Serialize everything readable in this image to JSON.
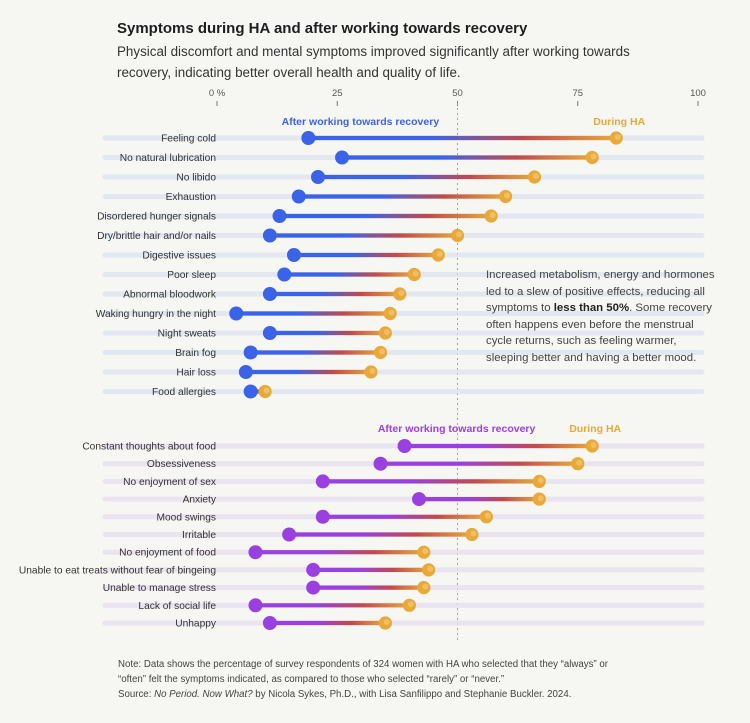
{
  "header": {
    "title": "Symptoms during HA and after working towards recovery",
    "subtitle": "Physical discomfort and mental symptoms improved significantly after working towards recovery, indicating better overall health and quality of life."
  },
  "annotation": {
    "text_before": "Increased metabolism, energy and hormones led to a slew of positive effects, reducing all symptoms to ",
    "bold": "less than 50%",
    "text_after": ". Some recovery often happens even before the menstrual cycle returns, such as feeling warmer, sleeping better and having a better mood."
  },
  "footer": {
    "note": "Note: Data shows the percentage of survey respondents of 324 women with HA who selected that they “always” or “often” felt the symptoms indicated, as compared to those who selected “rarely” or “never.”",
    "source_label": "Source: ",
    "source_book": "No Period. Now What?",
    "source_rest": " by Nicola Sykes, Ph.D., with Lisa Sanfilippo and Stephanie Buckler. 2024."
  },
  "colors": {
    "physical": "#3b63e8",
    "mental": "#9a3fe0",
    "during": "#e8a83a",
    "connector_mid": "#c24a4a",
    "reference_line": "#9a9a9a"
  },
  "chart_data": [
    {
      "type": "dumbbell",
      "group": "physical",
      "x_axis": {
        "ticks": [
          0,
          25,
          50,
          75,
          100
        ],
        "tick_labels": [
          "0 %",
          "25",
          "50",
          "75",
          "100"
        ],
        "xlim": [
          0,
          100
        ],
        "reference_line": 50
      },
      "legend": {
        "after": "After working towards recovery",
        "during": "During HA"
      },
      "categories": [
        "Feeling cold",
        "No natural lubrication",
        "No libido",
        "Exhaustion",
        "Disordered hunger signals",
        "Dry/brittle hair and/or nails",
        "Digestive issues",
        "Poor sleep",
        "Abnormal bloodwork",
        "Waking hungry in the night",
        "Night sweats",
        "Brain fog",
        "Hair loss",
        "Food allergies"
      ],
      "series": [
        {
          "name": "After working towards recovery",
          "values": [
            19,
            26,
            21,
            17,
            13,
            11,
            16,
            14,
            11,
            4,
            11,
            7,
            6,
            7
          ]
        },
        {
          "name": "During HA",
          "values": [
            83,
            78,
            66,
            60,
            57,
            50,
            46,
            41,
            38,
            36,
            35,
            34,
            32,
            10
          ]
        }
      ]
    },
    {
      "type": "dumbbell",
      "group": "mental",
      "x_axis": {
        "xlim": [
          0,
          100
        ],
        "reference_line": 50
      },
      "legend": {
        "after": "After working towards recovery",
        "during": "During HA"
      },
      "categories": [
        "Constant thoughts about food",
        "Obsessiveness",
        "No enjoyment of sex",
        "Anxiety",
        "Mood swings",
        "Irritable",
        "No enjoyment of food",
        "Unable to eat treats without fear of bingeing",
        "Unable to manage stress",
        "Lack of social life",
        "Unhappy"
      ],
      "series": [
        {
          "name": "After working towards recovery",
          "values": [
            39,
            34,
            22,
            42,
            22,
            15,
            8,
            20,
            20,
            8,
            11
          ]
        },
        {
          "name": "During HA",
          "values": [
            78,
            75,
            67,
            67,
            56,
            53,
            43,
            44,
            43,
            40,
            35
          ]
        }
      ]
    }
  ]
}
